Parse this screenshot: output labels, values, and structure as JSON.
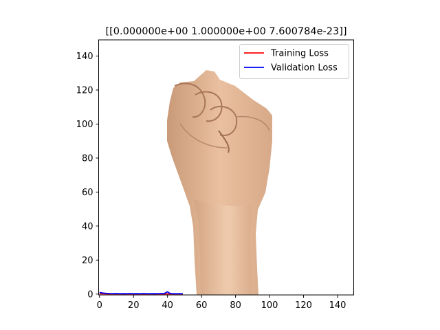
{
  "chart_data": {
    "type": "line",
    "title": "[[0.000000e+00 1.000000e+00 7.600784e-23]]",
    "xlabel": "",
    "ylabel": "",
    "xlim": [
      -0.5,
      149.5
    ],
    "ylim": [
      149.5,
      -0.5
    ],
    "y_inverted": true,
    "x_ticks": [
      0,
      20,
      40,
      60,
      80,
      100,
      120,
      140
    ],
    "y_ticks": [
      0,
      20,
      40,
      60,
      80,
      100,
      120,
      140
    ],
    "grid": false,
    "legend_position": "top-right",
    "background_image": "clenched-fist-photo",
    "series": [
      {
        "name": "Training Loss",
        "color": "#ff0000",
        "x": [
          0,
          5,
          10,
          15,
          20,
          25,
          30,
          35,
          40,
          45,
          49
        ],
        "y": [
          0.2,
          0.1,
          0.1,
          0.1,
          0.1,
          0.1,
          0.1,
          0.1,
          0.1,
          0.1,
          0.1
        ]
      },
      {
        "name": "Validation Loss",
        "color": "#0000ff",
        "x": [
          0,
          2,
          4,
          6,
          8,
          10,
          12,
          14,
          16,
          18,
          20,
          22,
          24,
          26,
          28,
          30,
          32,
          34,
          36,
          38,
          39,
          40,
          41,
          42,
          44,
          46,
          48,
          49
        ],
        "y": [
          0.9,
          0.6,
          0.4,
          0.3,
          0.25,
          0.3,
          0.2,
          0.25,
          0.2,
          0.3,
          0.2,
          0.25,
          0.2,
          0.3,
          0.2,
          0.2,
          0.25,
          0.2,
          0.3,
          0.3,
          0.8,
          1.4,
          0.6,
          0.3,
          0.2,
          0.2,
          0.2,
          0.2
        ]
      }
    ]
  }
}
